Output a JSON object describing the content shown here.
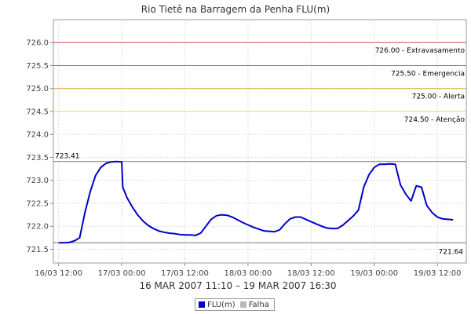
{
  "chart_data": {
    "type": "line",
    "title": "Rio Tietê na Barragem da Penha FLU(m)",
    "subtitle": "16 MAR 2007 11:10 – 19 MAR 2007 16:30",
    "ylim": [
      721.2,
      726.5
    ],
    "yticks": [
      "721.5",
      "722.0",
      "722.5",
      "723.0",
      "723.5",
      "724.0",
      "724.5",
      "725.0",
      "725.5",
      "726.0"
    ],
    "ytick_values": [
      721.5,
      722.0,
      722.5,
      723.0,
      723.5,
      724.0,
      724.5,
      725.0,
      725.5,
      726.0
    ],
    "xticks": [
      "16/03 12:00",
      "17/03 00:00",
      "17/03 12:00",
      "18/03 00:00",
      "18/03 12:00",
      "19/03 00:00",
      "19/03 12:00"
    ],
    "x_range_hours": [
      -1.0,
      77.5
    ],
    "thresholds": [
      {
        "value": 726.0,
        "label": "726.00 - Extravasamento",
        "color": "#e05050"
      },
      {
        "value": 725.5,
        "label": "725.50 - Emergencia",
        "color": "#d050d0"
      },
      {
        "value": 725.0,
        "label": "725.00 - Alerta",
        "color": "#e0a030"
      },
      {
        "value": 724.5,
        "label": "724.50 - Atenção",
        "color": "#e0e050"
      }
    ],
    "max_label": "723.41",
    "min_label": "721.64",
    "max_value": 723.41,
    "min_value": 721.64,
    "series": [
      {
        "name": "FLU(m)",
        "color": "#0000cc",
        "x_hours": [
          0,
          1,
          2,
          3,
          4,
          5,
          6,
          7,
          8,
          9,
          10,
          11,
          12,
          12.2,
          13,
          14,
          15,
          16,
          17,
          18,
          19,
          20,
          21,
          22,
          23,
          24,
          25,
          26,
          27,
          28,
          29,
          30,
          31,
          32,
          33,
          34,
          35,
          36,
          37,
          38,
          39,
          40,
          41,
          42,
          43,
          44,
          45,
          46,
          47,
          48,
          49,
          50,
          51,
          52,
          53,
          54,
          55,
          56,
          57,
          58,
          59,
          60,
          61,
          62,
          63,
          64,
          65,
          66,
          67,
          68,
          69,
          70,
          71,
          72,
          73,
          74,
          75
        ],
        "values": [
          721.64,
          721.64,
          721.65,
          721.68,
          721.75,
          722.3,
          722.75,
          723.1,
          723.28,
          723.37,
          723.4,
          723.41,
          723.4,
          722.85,
          722.62,
          722.42,
          722.25,
          722.12,
          722.02,
          721.95,
          721.9,
          721.87,
          721.85,
          721.84,
          721.82,
          721.81,
          721.81,
          721.8,
          721.85,
          722.0,
          722.15,
          722.23,
          722.25,
          722.24,
          722.2,
          722.14,
          722.08,
          722.03,
          721.98,
          721.94,
          721.9,
          721.89,
          721.88,
          721.92,
          722.05,
          722.16,
          722.2,
          722.2,
          722.15,
          722.1,
          722.05,
          722.0,
          721.96,
          721.95,
          721.95,
          722.02,
          722.12,
          722.22,
          722.35,
          722.85,
          723.12,
          723.28,
          723.35,
          723.35,
          723.36,
          723.35,
          722.9,
          722.7,
          722.55,
          722.88,
          722.85,
          722.45,
          722.3,
          722.2,
          722.16,
          722.15,
          722.14
        ]
      }
    ],
    "legend": [
      {
        "label": "FLU(m)",
        "color": "#0000cc"
      },
      {
        "label": "Falha",
        "color": "#b8b8b8"
      }
    ]
  }
}
